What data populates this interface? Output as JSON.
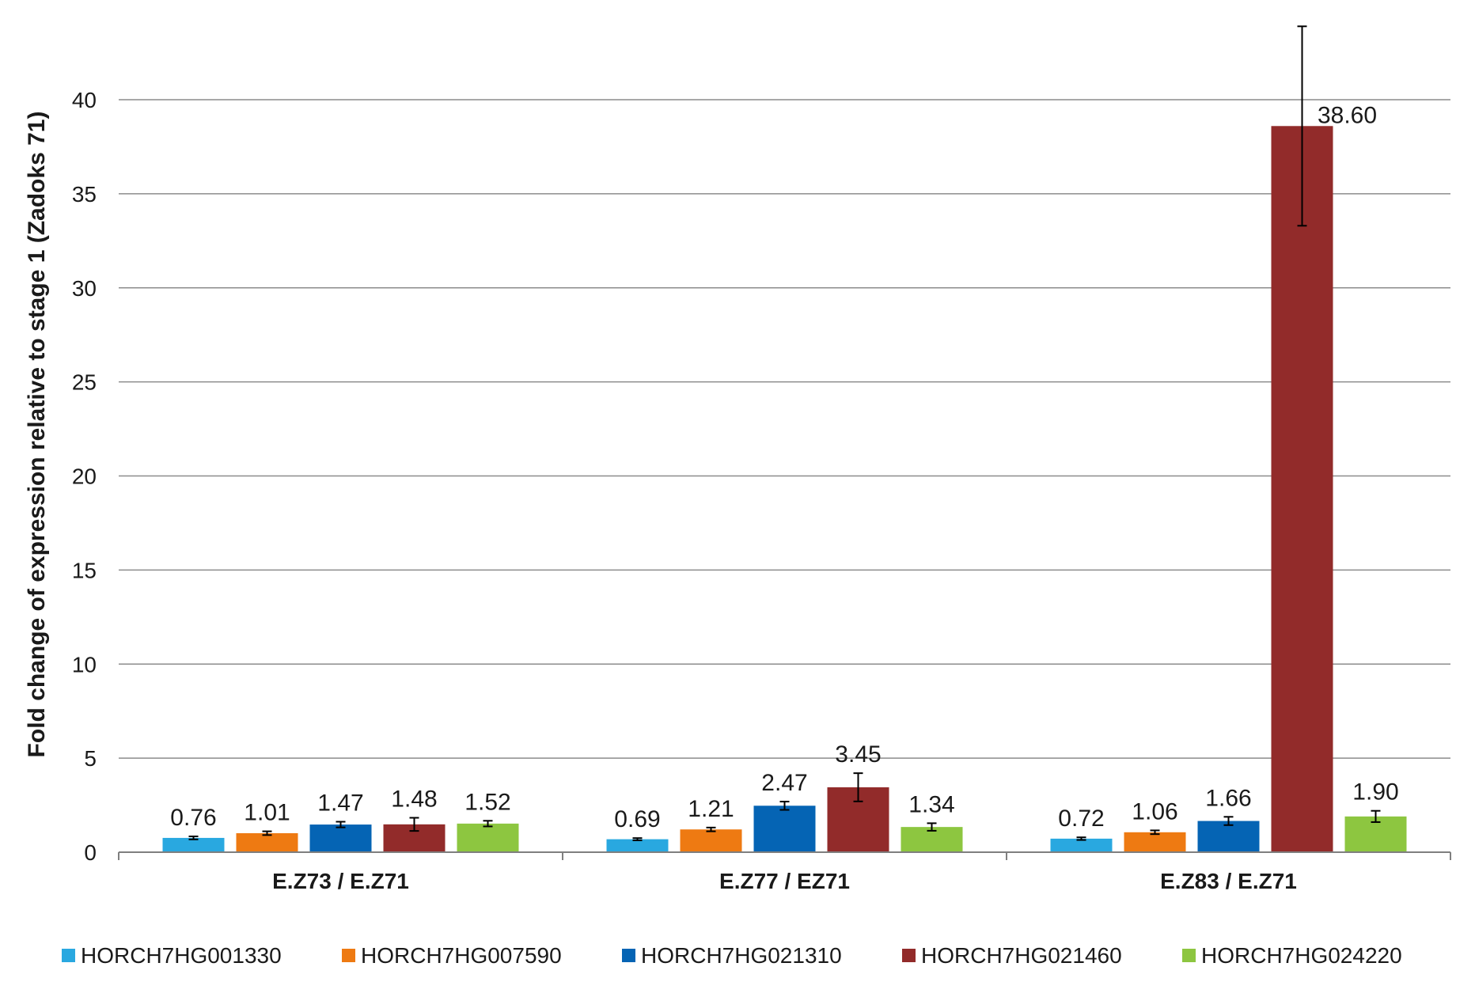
{
  "chart_data": {
    "type": "bar",
    "title": "",
    "xlabel": "",
    "ylabel": "Fold change of expression relative to stage 1 (Zadoks 71)",
    "ylim": [
      0,
      40
    ],
    "yticks": [
      "0",
      "5",
      "10",
      "15",
      "20",
      "25",
      "30",
      "35",
      "40"
    ],
    "grid": true,
    "legend_position": "bottom",
    "categories": [
      "E.Z73 / E.Z71",
      "E.Z77 / EZ71",
      "E.Z83 / E.Z71"
    ],
    "series": [
      {
        "name": "HORCH7HG001330",
        "color": "#29a8e0",
        "values": [
          0.76,
          0.69,
          0.72
        ],
        "labels": [
          "0.76",
          "0.69",
          "0.72"
        ],
        "errors": [
          0.08,
          0.06,
          0.07
        ]
      },
      {
        "name": "HORCH7HG007590",
        "color": "#ee7a12",
        "values": [
          1.01,
          1.21,
          1.06
        ],
        "labels": [
          "1.01",
          "1.21",
          "1.06"
        ],
        "errors": [
          0.1,
          0.1,
          0.1
        ]
      },
      {
        "name": "HORCH7HG021310",
        "color": "#0564b4",
        "values": [
          1.47,
          2.47,
          1.66
        ],
        "labels": [
          "1.47",
          "2.47",
          "1.66"
        ],
        "errors": [
          0.15,
          0.22,
          0.22
        ]
      },
      {
        "name": "HORCH7HG021460",
        "color": "#922b2a",
        "values": [
          1.48,
          3.45,
          38.6
        ],
        "labels": [
          "1.48",
          "3.45",
          "38.60"
        ],
        "errors": [
          0.35,
          0.75,
          5.3
        ]
      },
      {
        "name": "HORCH7HG024220",
        "color": "#8dc640",
        "values": [
          1.52,
          1.34,
          1.9
        ],
        "labels": [
          "1.52",
          "1.34",
          "1.90"
        ],
        "errors": [
          0.15,
          0.2,
          0.3
        ]
      }
    ]
  }
}
